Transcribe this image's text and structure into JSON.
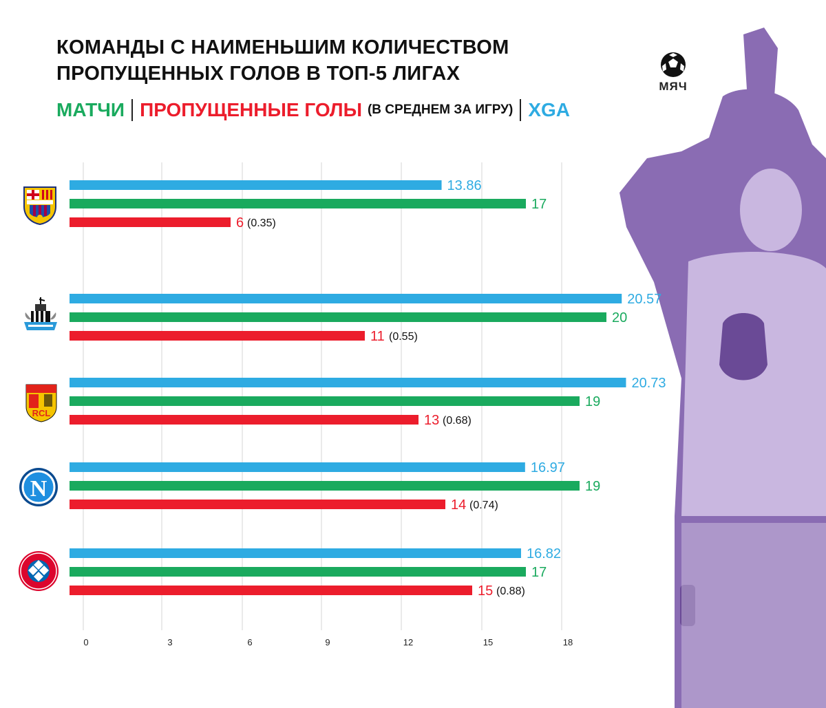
{
  "title_line1": "КОМАНДЫ С НАИМЕНЬШИМ КОЛИЧЕСТВОМ",
  "title_line2": "ПРОПУЩЕННЫХ ГОЛОВ В ТОП-5 ЛИГАХ",
  "legend": {
    "matches": "МАТЧИ",
    "conceded": "ПРОПУЩЕННЫЕ ГОЛЫ",
    "conceded_note": "(В СРЕДНЕМ ЗА ИГРУ)",
    "xga": "XGA"
  },
  "brand": "МЯЧ",
  "colors": {
    "xga": "#2eabe2",
    "matches": "#1aaa5e",
    "conceded": "#ec1d2c",
    "grid": "#d6d6d6",
    "player_tint": "#7a5aa6"
  },
  "chart_data": {
    "type": "bar",
    "orientation": "horizontal",
    "categories": [
      "barcelona-crest",
      "newcastle-crest",
      "lens-crest",
      "napoli-crest",
      "bayern-crest"
    ],
    "series": [
      {
        "name": "XGA",
        "values": [
          13.86,
          20.57,
          20.73,
          16.97,
          16.82
        ]
      },
      {
        "name": "МАТЧИ",
        "values": [
          17,
          20,
          19,
          19,
          17
        ]
      },
      {
        "name": "ПРОПУЩЕННЫЕ ГОЛЫ",
        "values": [
          6,
          11,
          13,
          14,
          15
        ],
        "per_game": [
          "(0.35)",
          "(0.55)",
          "(0.68)",
          "(0.74)",
          "(0.88)"
        ]
      }
    ],
    "xticks": [
      0,
      3,
      6,
      9,
      12,
      15,
      18
    ],
    "xlim": [
      0,
      20
    ],
    "grid": true
  }
}
